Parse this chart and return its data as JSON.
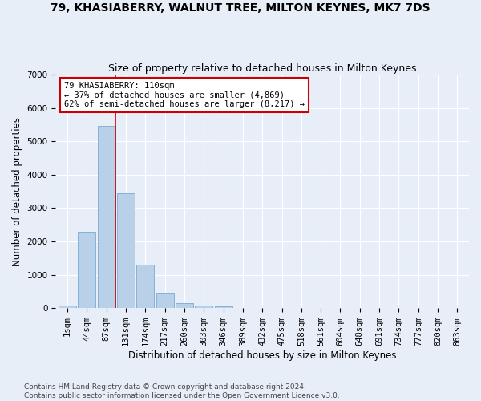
{
  "title": "79, KHASIABERRY, WALNUT TREE, MILTON KEYNES, MK7 7DS",
  "subtitle": "Size of property relative to detached houses in Milton Keynes",
  "xlabel": "Distribution of detached houses by size in Milton Keynes",
  "ylabel": "Number of detached properties",
  "footer_line1": "Contains HM Land Registry data © Crown copyright and database right 2024.",
  "footer_line2": "Contains public sector information licensed under the Open Government Licence v3.0.",
  "bar_labels": [
    "1sqm",
    "44sqm",
    "87sqm",
    "131sqm",
    "174sqm",
    "217sqm",
    "260sqm",
    "303sqm",
    "346sqm",
    "389sqm",
    "432sqm",
    "475sqm",
    "518sqm",
    "561sqm",
    "604sqm",
    "648sqm",
    "691sqm",
    "734sqm",
    "777sqm",
    "820sqm",
    "863sqm"
  ],
  "bar_values": [
    80,
    2280,
    5470,
    3440,
    1310,
    470,
    160,
    80,
    50,
    0,
    0,
    0,
    0,
    0,
    0,
    0,
    0,
    0,
    0,
    0,
    0
  ],
  "bar_color": "#b8d0e8",
  "bar_edge_color": "#7aaad0",
  "annotation_text": "79 KHASIABERRY: 110sqm\n← 37% of detached houses are smaller (4,869)\n62% of semi-detached houses are larger (8,217) →",
  "annotation_box_color": "#ffffff",
  "annotation_box_edge_color": "#cc0000",
  "vline_x_index": 2,
  "vline_color": "#cc0000",
  "ylim": [
    0,
    7000
  ],
  "yticks": [
    0,
    1000,
    2000,
    3000,
    4000,
    5000,
    6000,
    7000
  ],
  "bg_color": "#e8eef8",
  "plot_bg_color": "#e8eef8",
  "grid_color": "#ffffff",
  "title_fontsize": 10,
  "subtitle_fontsize": 9,
  "axis_label_fontsize": 8.5,
  "tick_fontsize": 7.5,
  "footer_fontsize": 6.5
}
